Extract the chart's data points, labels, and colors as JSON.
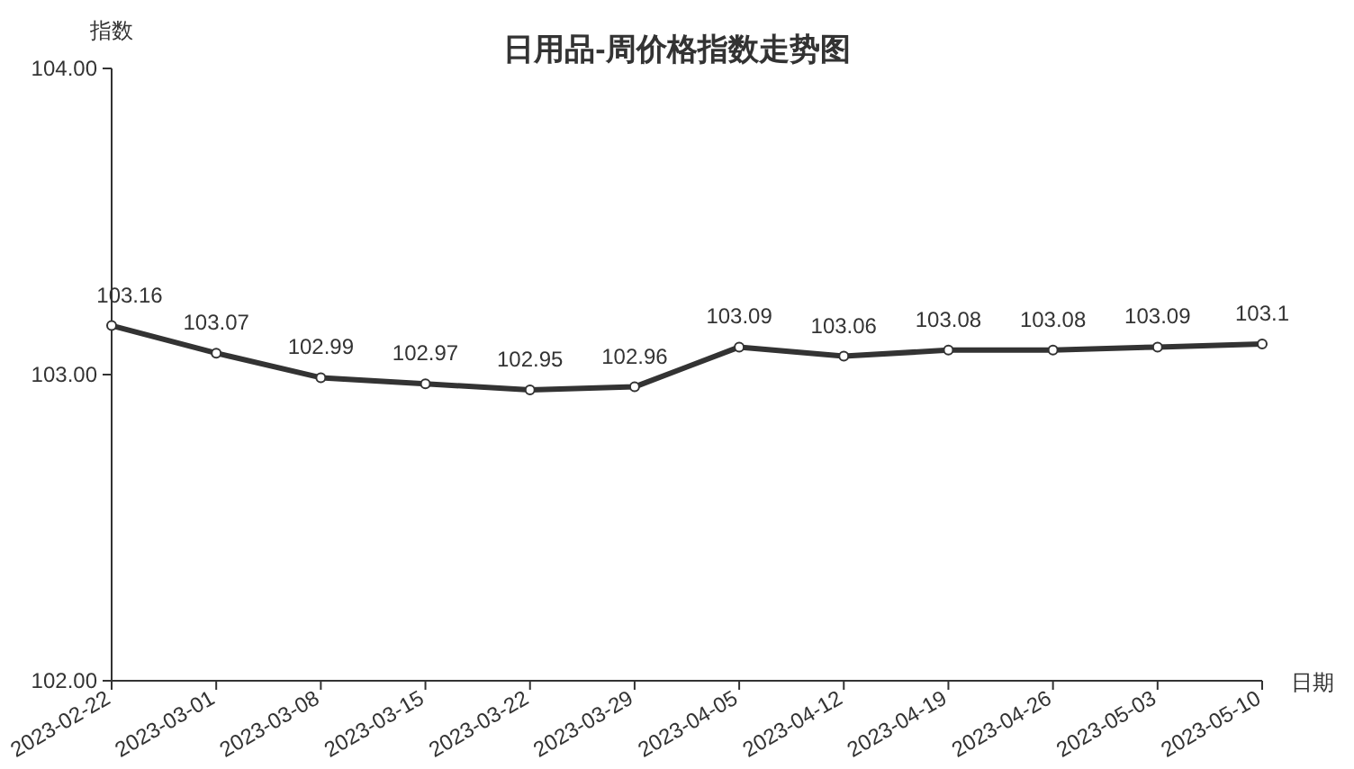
{
  "chart_data": {
    "type": "line",
    "title": "日用品-周价格指数走势图",
    "xlabel": "日期",
    "ylabel": "指数",
    "categories": [
      "2023-02-22",
      "2023-03-01",
      "2023-03-08",
      "2023-03-15",
      "2023-03-22",
      "2023-03-29",
      "2023-04-05",
      "2023-04-12",
      "2023-04-19",
      "2023-04-26",
      "2023-05-03",
      "2023-05-10"
    ],
    "series": [
      {
        "color": "#333333",
        "values": [
          103.16,
          103.07,
          102.99,
          102.97,
          102.95,
          102.96,
          103.09,
          103.06,
          103.08,
          103.08,
          103.09,
          103.1
        ]
      }
    ],
    "ylim": [
      102,
      104
    ],
    "yticks": [
      {
        "value": 102,
        "label": "102.00"
      },
      {
        "value": 103,
        "label": "103.00"
      },
      {
        "value": 104,
        "label": "104.00"
      }
    ],
    "data_labels": true,
    "marker": "circle",
    "line_style": "solid"
  }
}
